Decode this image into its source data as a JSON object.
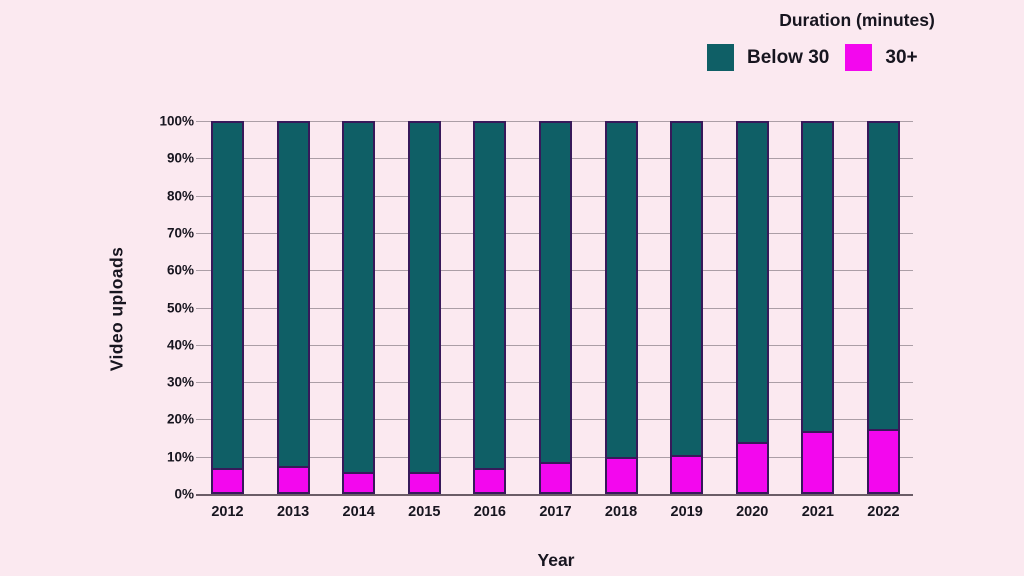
{
  "chart_data": {
    "type": "bar",
    "stacked": true,
    "orientation": "vertical",
    "title": "",
    "xlabel": "Year",
    "ylabel": "Video uploads",
    "legend": {
      "title": "Duration (minutes)",
      "position": "top-right"
    },
    "categories": [
      "2012",
      "2013",
      "2014",
      "2015",
      "2016",
      "2017",
      "2018",
      "2019",
      "2020",
      "2021",
      "2022"
    ],
    "series": [
      {
        "name": "Below 30",
        "color": "#0f5f66",
        "values": [
          94,
          93.5,
          95,
          95,
          94,
          92.5,
          91,
          90.5,
          87,
          84,
          83.5
        ]
      },
      {
        "name": "30+",
        "color": "#f307ee",
        "values": [
          6,
          6.5,
          5,
          5,
          6,
          7.5,
          9,
          9.5,
          13,
          16,
          16.5
        ]
      }
    ],
    "ylim": [
      0,
      100
    ],
    "y_ticks": [
      {
        "label": "0%",
        "value": 0
      },
      {
        "label": "10%",
        "value": 10
      },
      {
        "label": "20%",
        "value": 20
      },
      {
        "label": "30%",
        "value": 30
      },
      {
        "label": "40%",
        "value": 40
      },
      {
        "label": "50%",
        "value": 50
      },
      {
        "label": "60%",
        "value": 60
      },
      {
        "label": "70%",
        "value": 70
      },
      {
        "label": "80%",
        "value": 80
      },
      {
        "label": "90%",
        "value": 90
      },
      {
        "label": "100%",
        "value": 100
      }
    ],
    "grid": true
  },
  "colors": {
    "background": "#fbe9f0",
    "bar_outline": "#37195a",
    "gridline": "#ab9ea6",
    "axis_line": "#6a5c66",
    "text": "#17151f"
  }
}
